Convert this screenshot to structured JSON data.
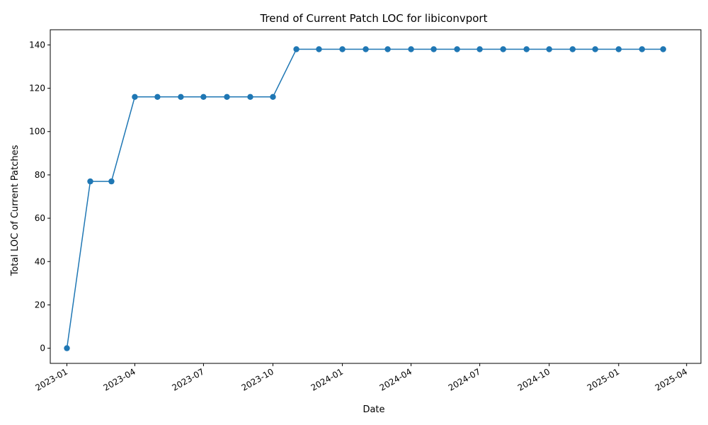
{
  "chart_data": {
    "type": "line",
    "title": "Trend of Current Patch LOC for libiconvport",
    "xlabel": "Date",
    "ylabel": "Total LOC of Current Patches",
    "x_ticks": [
      "2023-01",
      "2023-04",
      "2023-07",
      "2023-10",
      "2024-01",
      "2024-04",
      "2024-07",
      "2024-10",
      "2025-01",
      "2025-04"
    ],
    "y_ticks": [
      0,
      20,
      40,
      60,
      80,
      100,
      120,
      140
    ],
    "ylim": [
      -7,
      147
    ],
    "xlim": [
      "2022-12-10",
      "2025-04-20"
    ],
    "grid": false,
    "color": "#1f77b4",
    "markers": true,
    "series": [
      {
        "x": [
          "2023-01-01",
          "2023-02-01",
          "2023-03-01",
          "2023-04-01",
          "2023-05-01",
          "2023-06-01",
          "2023-07-01",
          "2023-08-01",
          "2023-09-01",
          "2023-10-01",
          "2023-11-01",
          "2023-12-01",
          "2024-01-01",
          "2024-02-01",
          "2024-03-01",
          "2024-04-01",
          "2024-05-01",
          "2024-06-01",
          "2024-07-01",
          "2024-08-01",
          "2024-09-01",
          "2024-10-01",
          "2024-11-01",
          "2024-12-01",
          "2025-01-01",
          "2025-02-01",
          "2025-03-01"
        ],
        "y": [
          0,
          77,
          77,
          116,
          116,
          116,
          116,
          116,
          116,
          116,
          138,
          138,
          138,
          138,
          138,
          138,
          138,
          138,
          138,
          138,
          138,
          138,
          138,
          138,
          138,
          138,
          138
        ]
      }
    ]
  }
}
